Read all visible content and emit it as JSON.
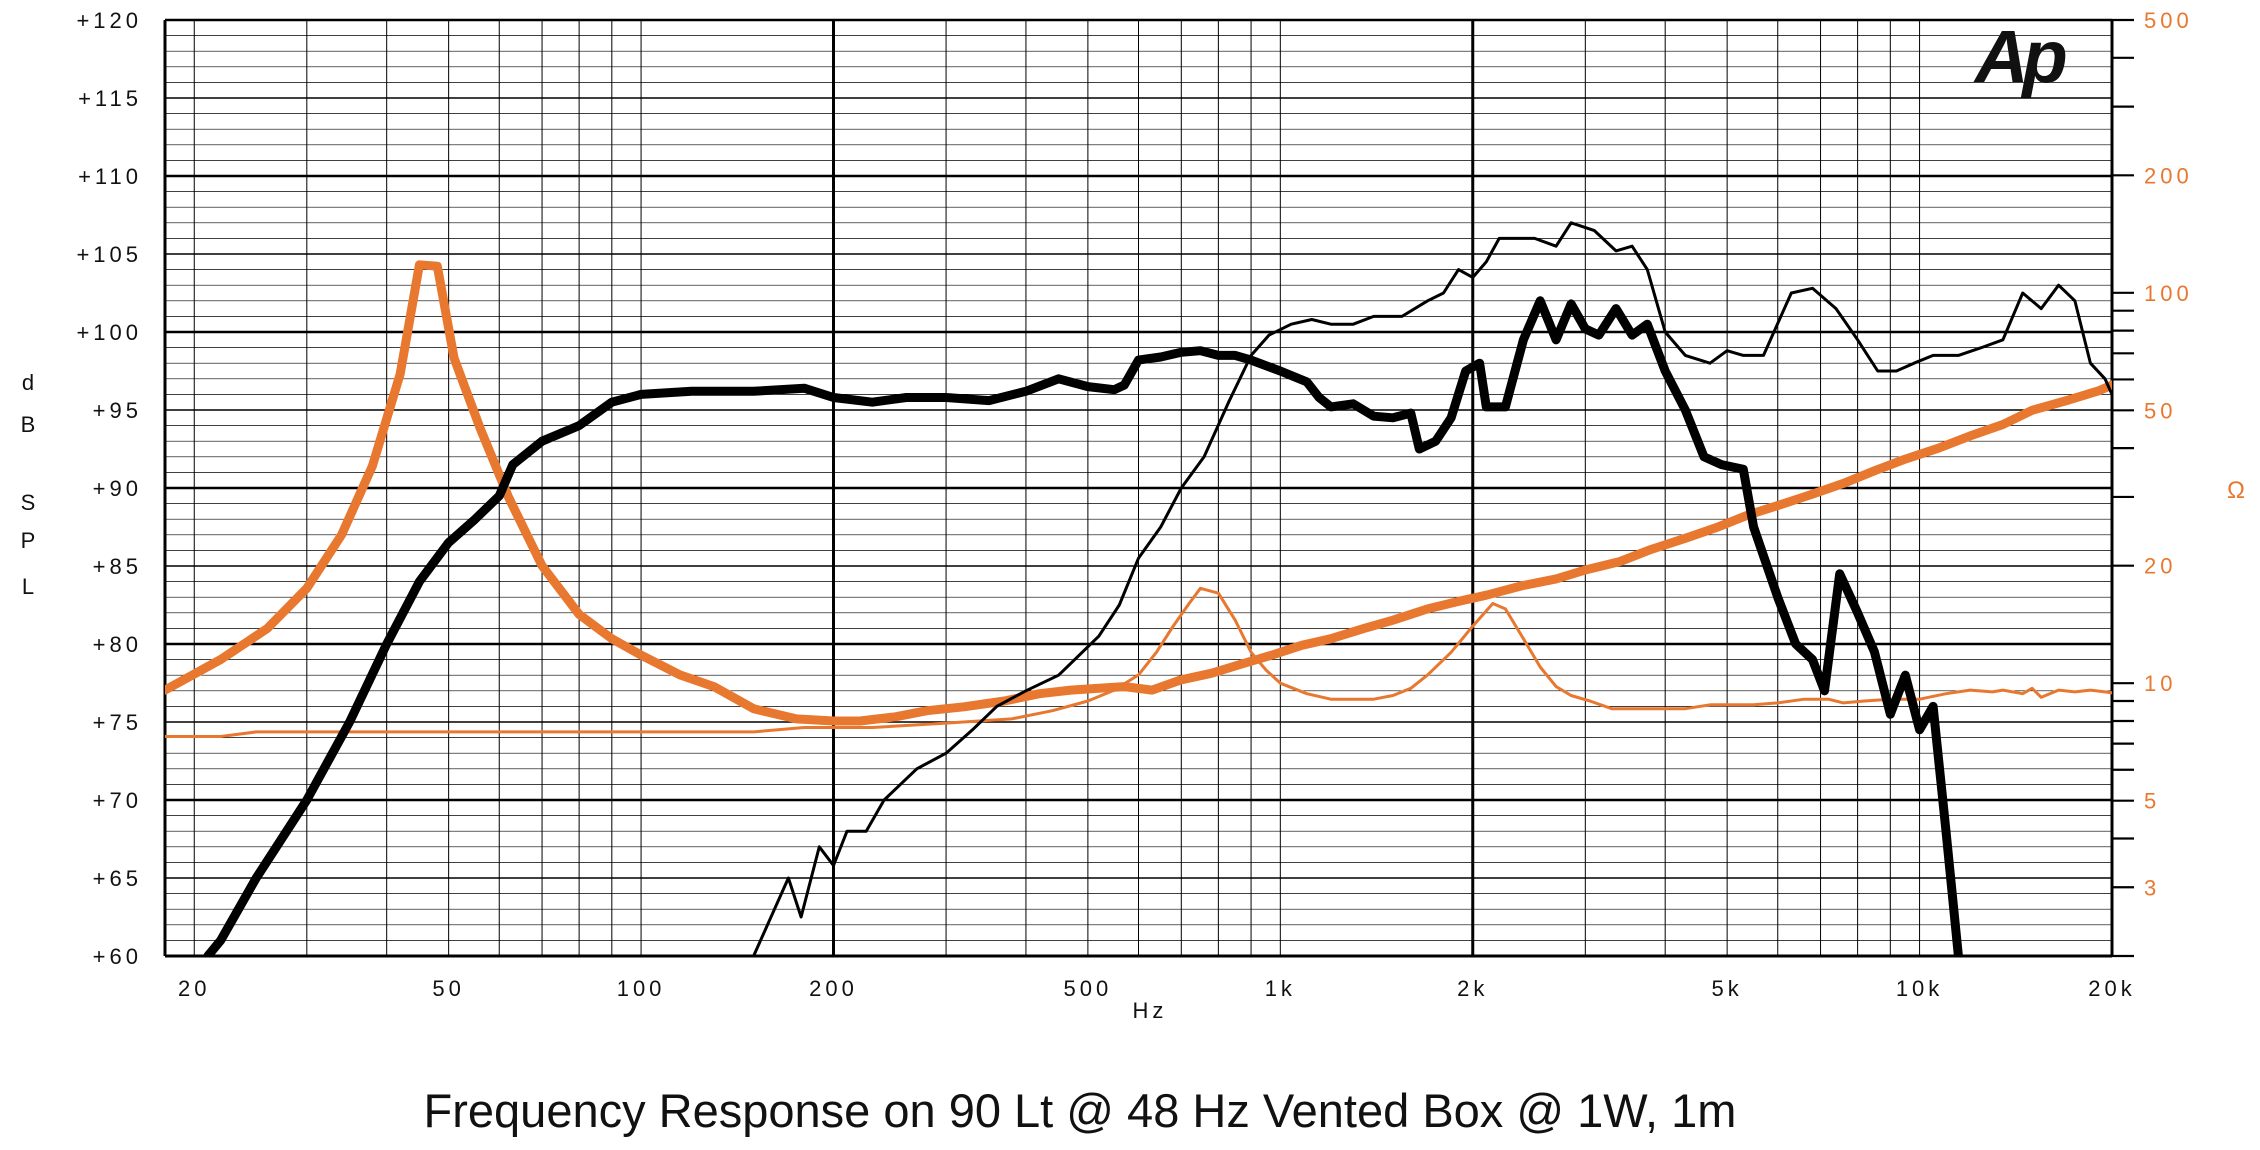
{
  "caption": "Frequency Response on 90 Lt @ 48 Hz Vented Box @ 1W, 1m",
  "logo_text": "Ap",
  "colors": {
    "spl": "#000000",
    "impedance": "#e8782f",
    "grid": "#000000"
  },
  "chart_data": {
    "type": "line",
    "title": "Frequency Response on 90 Lt @ 48 Hz Vented Box @ 1W, 1m",
    "xlabel": "Hz",
    "ylabel": "dB SPL",
    "y2label": "Ω",
    "x_scale": "log",
    "xlim": [
      18,
      20000
    ],
    "ylim": [
      60,
      120
    ],
    "y2lim": [
      2,
      500
    ],
    "y2_scale": "log",
    "grid": true,
    "x_ticks": [
      {
        "value": 20,
        "label": "20"
      },
      {
        "value": 50,
        "label": "50"
      },
      {
        "value": 100,
        "label": "100"
      },
      {
        "value": 200,
        "label": "200"
      },
      {
        "value": 500,
        "label": "500"
      },
      {
        "value": 1000,
        "label": "1k"
      },
      {
        "value": 2000,
        "label": "2k"
      },
      {
        "value": 5000,
        "label": "5k"
      },
      {
        "value": 10000,
        "label": "10k"
      },
      {
        "value": 20000,
        "label": "20k"
      }
    ],
    "y_ticks": [
      "+60",
      "+65",
      "+70",
      "+75",
      "+80",
      "+85",
      "+90",
      "+95",
      "+100",
      "+105",
      "+110",
      "+115",
      "+120"
    ],
    "y2_ticks": [
      {
        "value": 3,
        "label": "3"
      },
      {
        "value": 5,
        "label": "5"
      },
      {
        "value": 10,
        "label": "10"
      },
      {
        "value": 20,
        "label": "20"
      },
      {
        "value": 50,
        "label": "50"
      },
      {
        "value": 100,
        "label": "100"
      },
      {
        "value": 200,
        "label": "200"
      },
      {
        "value": 500,
        "label": "500"
      }
    ],
    "series": [
      {
        "axis": "left",
        "color": "#000000",
        "weight": "thick",
        "points": [
          [
            21,
            60
          ],
          [
            22,
            61
          ],
          [
            25,
            65
          ],
          [
            30,
            70
          ],
          [
            35,
            75
          ],
          [
            40,
            80
          ],
          [
            45,
            84
          ],
          [
            50,
            86.5
          ],
          [
            55,
            88
          ],
          [
            60,
            89.5
          ],
          [
            63,
            91.5
          ],
          [
            70,
            93
          ],
          [
            80,
            94
          ],
          [
            90,
            95.5
          ],
          [
            100,
            96
          ],
          [
            120,
            96.2
          ],
          [
            150,
            96.2
          ],
          [
            180,
            96.4
          ],
          [
            200,
            95.8
          ],
          [
            230,
            95.5
          ],
          [
            260,
            95.8
          ],
          [
            300,
            95.8
          ],
          [
            350,
            95.6
          ],
          [
            400,
            96.2
          ],
          [
            450,
            97
          ],
          [
            500,
            96.5
          ],
          [
            550,
            96.3
          ],
          [
            570,
            96.6
          ],
          [
            600,
            98.2
          ],
          [
            650,
            98.4
          ],
          [
            700,
            98.7
          ],
          [
            750,
            98.8
          ],
          [
            800,
            98.5
          ],
          [
            850,
            98.5
          ],
          [
            900,
            98.2
          ],
          [
            1000,
            97.5
          ],
          [
            1100,
            96.8
          ],
          [
            1150,
            95.8
          ],
          [
            1200,
            95.2
          ],
          [
            1300,
            95.4
          ],
          [
            1400,
            94.6
          ],
          [
            1500,
            94.5
          ],
          [
            1600,
            94.8
          ],
          [
            1650,
            92.5
          ],
          [
            1750,
            93
          ],
          [
            1850,
            94.5
          ],
          [
            1950,
            97.5
          ],
          [
            2050,
            98
          ],
          [
            2100,
            95.2
          ],
          [
            2250,
            95.2
          ],
          [
            2400,
            99.5
          ],
          [
            2550,
            102
          ],
          [
            2700,
            99.5
          ],
          [
            2850,
            101.8
          ],
          [
            3000,
            100.2
          ],
          [
            3150,
            99.8
          ],
          [
            3350,
            101.5
          ],
          [
            3550,
            99.8
          ],
          [
            3750,
            100.5
          ],
          [
            4000,
            97.5
          ],
          [
            4300,
            95
          ],
          [
            4600,
            92
          ],
          [
            4900,
            91.5
          ],
          [
            5300,
            91.2
          ],
          [
            5500,
            87.5
          ],
          [
            6000,
            83
          ],
          [
            6400,
            80
          ],
          [
            6800,
            79
          ],
          [
            7100,
            77
          ],
          [
            7500,
            84.5
          ],
          [
            8000,
            82
          ],
          [
            8500,
            79.5
          ],
          [
            9000,
            75.5
          ],
          [
            9500,
            78
          ],
          [
            10000,
            74.5
          ],
          [
            10500,
            76
          ],
          [
            11000,
            68
          ],
          [
            11500,
            60
          ]
        ]
      },
      {
        "axis": "left",
        "color": "#000000",
        "weight": "thin",
        "points": [
          [
            150,
            60
          ],
          [
            170,
            65
          ],
          [
            178,
            62.5
          ],
          [
            190,
            67
          ],
          [
            200,
            65.8
          ],
          [
            210,
            68
          ],
          [
            225,
            68
          ],
          [
            240,
            70
          ],
          [
            270,
            72
          ],
          [
            300,
            73
          ],
          [
            330,
            74.5
          ],
          [
            360,
            76
          ],
          [
            400,
            77
          ],
          [
            450,
            78
          ],
          [
            520,
            80.5
          ],
          [
            560,
            82.5
          ],
          [
            600,
            85.5
          ],
          [
            650,
            87.5
          ],
          [
            700,
            90
          ],
          [
            760,
            92
          ],
          [
            830,
            95.5
          ],
          [
            900,
            98.5
          ],
          [
            960,
            99.8
          ],
          [
            1040,
            100.5
          ],
          [
            1120,
            100.8
          ],
          [
            1200,
            100.5
          ],
          [
            1300,
            100.5
          ],
          [
            1400,
            101
          ],
          [
            1550,
            101
          ],
          [
            1700,
            102
          ],
          [
            1800,
            102.5
          ],
          [
            1900,
            104
          ],
          [
            2000,
            103.5
          ],
          [
            2100,
            104.5
          ],
          [
            2200,
            106
          ],
          [
            2500,
            106
          ],
          [
            2700,
            105.5
          ],
          [
            2850,
            107
          ],
          [
            3100,
            106.5
          ],
          [
            3350,
            105.2
          ],
          [
            3550,
            105.5
          ],
          [
            3750,
            104
          ],
          [
            4000,
            100
          ],
          [
            4300,
            98.5
          ],
          [
            4700,
            98
          ],
          [
            5000,
            98.8
          ],
          [
            5300,
            98.5
          ],
          [
            5700,
            98.5
          ],
          [
            6300,
            102.5
          ],
          [
            6800,
            102.8
          ],
          [
            7400,
            101.5
          ],
          [
            8000,
            99.5
          ],
          [
            8600,
            97.5
          ],
          [
            9200,
            97.5
          ],
          [
            9800,
            98
          ],
          [
            10500,
            98.5
          ],
          [
            11500,
            98.5
          ],
          [
            12500,
            99
          ],
          [
            13500,
            99.5
          ],
          [
            14500,
            102.5
          ],
          [
            15500,
            101.5
          ],
          [
            16500,
            103
          ],
          [
            17500,
            102
          ],
          [
            18500,
            98
          ],
          [
            19500,
            97
          ],
          [
            20000,
            96
          ],
          [
            21000,
            96
          ],
          [
            22000,
            91
          ]
        ]
      },
      {
        "axis": "right",
        "color": "#e8782f",
        "weight": "thick",
        "points": [
          [
            18,
            9.6
          ],
          [
            22,
            11.5
          ],
          [
            26,
            13.8
          ],
          [
            30,
            17.5
          ],
          [
            34,
            24
          ],
          [
            38,
            36
          ],
          [
            42,
            62
          ],
          [
            45,
            118
          ],
          [
            48,
            117
          ],
          [
            51,
            68
          ],
          [
            56,
            45
          ],
          [
            62,
            30
          ],
          [
            70,
            20
          ],
          [
            80,
            15
          ],
          [
            90,
            13
          ],
          [
            100,
            11.8
          ],
          [
            115,
            10.5
          ],
          [
            130,
            9.8
          ],
          [
            150,
            8.6
          ],
          [
            175,
            8.1
          ],
          [
            200,
            8.0
          ],
          [
            220,
            8.0
          ],
          [
            250,
            8.2
          ],
          [
            280,
            8.5
          ],
          [
            320,
            8.7
          ],
          [
            370,
            9
          ],
          [
            420,
            9.4
          ],
          [
            470,
            9.6
          ],
          [
            520,
            9.7
          ],
          [
            570,
            9.8
          ],
          [
            630,
            9.6
          ],
          [
            700,
            10.2
          ],
          [
            780,
            10.6
          ],
          [
            870,
            11.2
          ],
          [
            970,
            11.8
          ],
          [
            1080,
            12.5
          ],
          [
            1200,
            13
          ],
          [
            1350,
            13.8
          ],
          [
            1500,
            14.5
          ],
          [
            1700,
            15.5
          ],
          [
            1900,
            16.2
          ],
          [
            2100,
            16.8
          ],
          [
            2400,
            17.8
          ],
          [
            2700,
            18.5
          ],
          [
            3000,
            19.5
          ],
          [
            3400,
            20.5
          ],
          [
            3800,
            22
          ],
          [
            4300,
            23.5
          ],
          [
            4800,
            25
          ],
          [
            5400,
            27
          ],
          [
            6000,
            28.5
          ],
          [
            6800,
            30.5
          ],
          [
            7600,
            32.5
          ],
          [
            8500,
            35
          ],
          [
            9500,
            37.5
          ],
          [
            10700,
            40
          ],
          [
            12000,
            43
          ],
          [
            13500,
            46
          ],
          [
            15000,
            50
          ],
          [
            17000,
            53
          ],
          [
            19000,
            56
          ],
          [
            21000,
            60
          ],
          [
            22000,
            62
          ]
        ]
      },
      {
        "axis": "right",
        "color": "#e8782f",
        "weight": "thin",
        "points": [
          [
            18,
            7.3
          ],
          [
            22,
            7.3
          ],
          [
            25,
            7.5
          ],
          [
            50,
            7.5
          ],
          [
            100,
            7.5
          ],
          [
            150,
            7.5
          ],
          [
            180,
            7.7
          ],
          [
            230,
            7.7
          ],
          [
            300,
            7.9
          ],
          [
            380,
            8.1
          ],
          [
            440,
            8.5
          ],
          [
            500,
            9
          ],
          [
            550,
            9.6
          ],
          [
            600,
            10.5
          ],
          [
            640,
            12
          ],
          [
            680,
            14
          ],
          [
            720,
            16
          ],
          [
            750,
            17.5
          ],
          [
            800,
            17
          ],
          [
            850,
            14.5
          ],
          [
            900,
            12
          ],
          [
            950,
            10.8
          ],
          [
            1000,
            10
          ],
          [
            1100,
            9.4
          ],
          [
            1200,
            9.1
          ],
          [
            1300,
            9.1
          ],
          [
            1400,
            9.1
          ],
          [
            1500,
            9.3
          ],
          [
            1600,
            9.7
          ],
          [
            1700,
            10.5
          ],
          [
            1850,
            12
          ],
          [
            2000,
            14
          ],
          [
            2150,
            16
          ],
          [
            2250,
            15.5
          ],
          [
            2400,
            13
          ],
          [
            2550,
            11
          ],
          [
            2700,
            9.8
          ],
          [
            2850,
            9.3
          ],
          [
            3050,
            9
          ],
          [
            3300,
            8.6
          ],
          [
            3800,
            8.6
          ],
          [
            4300,
            8.6
          ],
          [
            4700,
            8.8
          ],
          [
            5000,
            8.8
          ],
          [
            5500,
            8.8
          ],
          [
            6000,
            8.9
          ],
          [
            6600,
            9.1
          ],
          [
            7200,
            9.1
          ],
          [
            7600,
            8.9
          ],
          [
            8200,
            9.0
          ],
          [
            9000,
            9.1
          ],
          [
            10000,
            9.1
          ],
          [
            11000,
            9.4
          ],
          [
            12000,
            9.6
          ],
          [
            13000,
            9.5
          ],
          [
            13500,
            9.6
          ],
          [
            14500,
            9.4
          ],
          [
            15000,
            9.7
          ],
          [
            15500,
            9.2
          ],
          [
            16500,
            9.6
          ],
          [
            17500,
            9.5
          ],
          [
            18500,
            9.6
          ],
          [
            19500,
            9.5
          ],
          [
            20500,
            9.4
          ],
          [
            22000,
            9.4
          ]
        ]
      }
    ]
  }
}
